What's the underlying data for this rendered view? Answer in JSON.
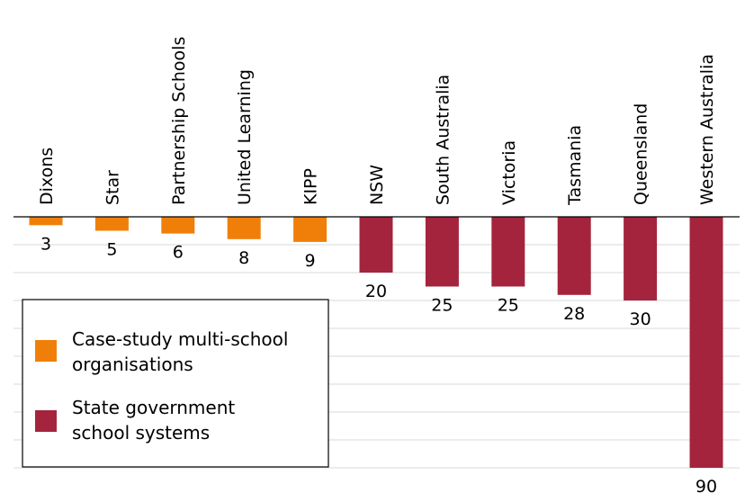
{
  "chart_data": {
    "type": "bar",
    "orientation": "downward",
    "categories": [
      "Dixons",
      "Star",
      "Partnership Schools",
      "United Learning",
      "KIPP",
      "NSW",
      "South Australia",
      "Victoria",
      "Tasmania",
      "Queensland",
      "Western Australia"
    ],
    "values": [
      3,
      5,
      6,
      8,
      9,
      20,
      25,
      25,
      28,
      30,
      90
    ],
    "groups": [
      0,
      0,
      0,
      0,
      0,
      1,
      1,
      1,
      1,
      1,
      1
    ],
    "series": [
      {
        "name_lines": [
          "Case-study multi-school",
          "organisations"
        ],
        "color": "#f07f09"
      },
      {
        "name_lines": [
          "State government",
          "school systems"
        ],
        "color": "#a4243d"
      }
    ],
    "ylim": [
      0,
      90
    ],
    "grid_step": 10,
    "grid": true,
    "legend_position": "bottom-left",
    "title": "",
    "xlabel": "",
    "ylabel": ""
  }
}
